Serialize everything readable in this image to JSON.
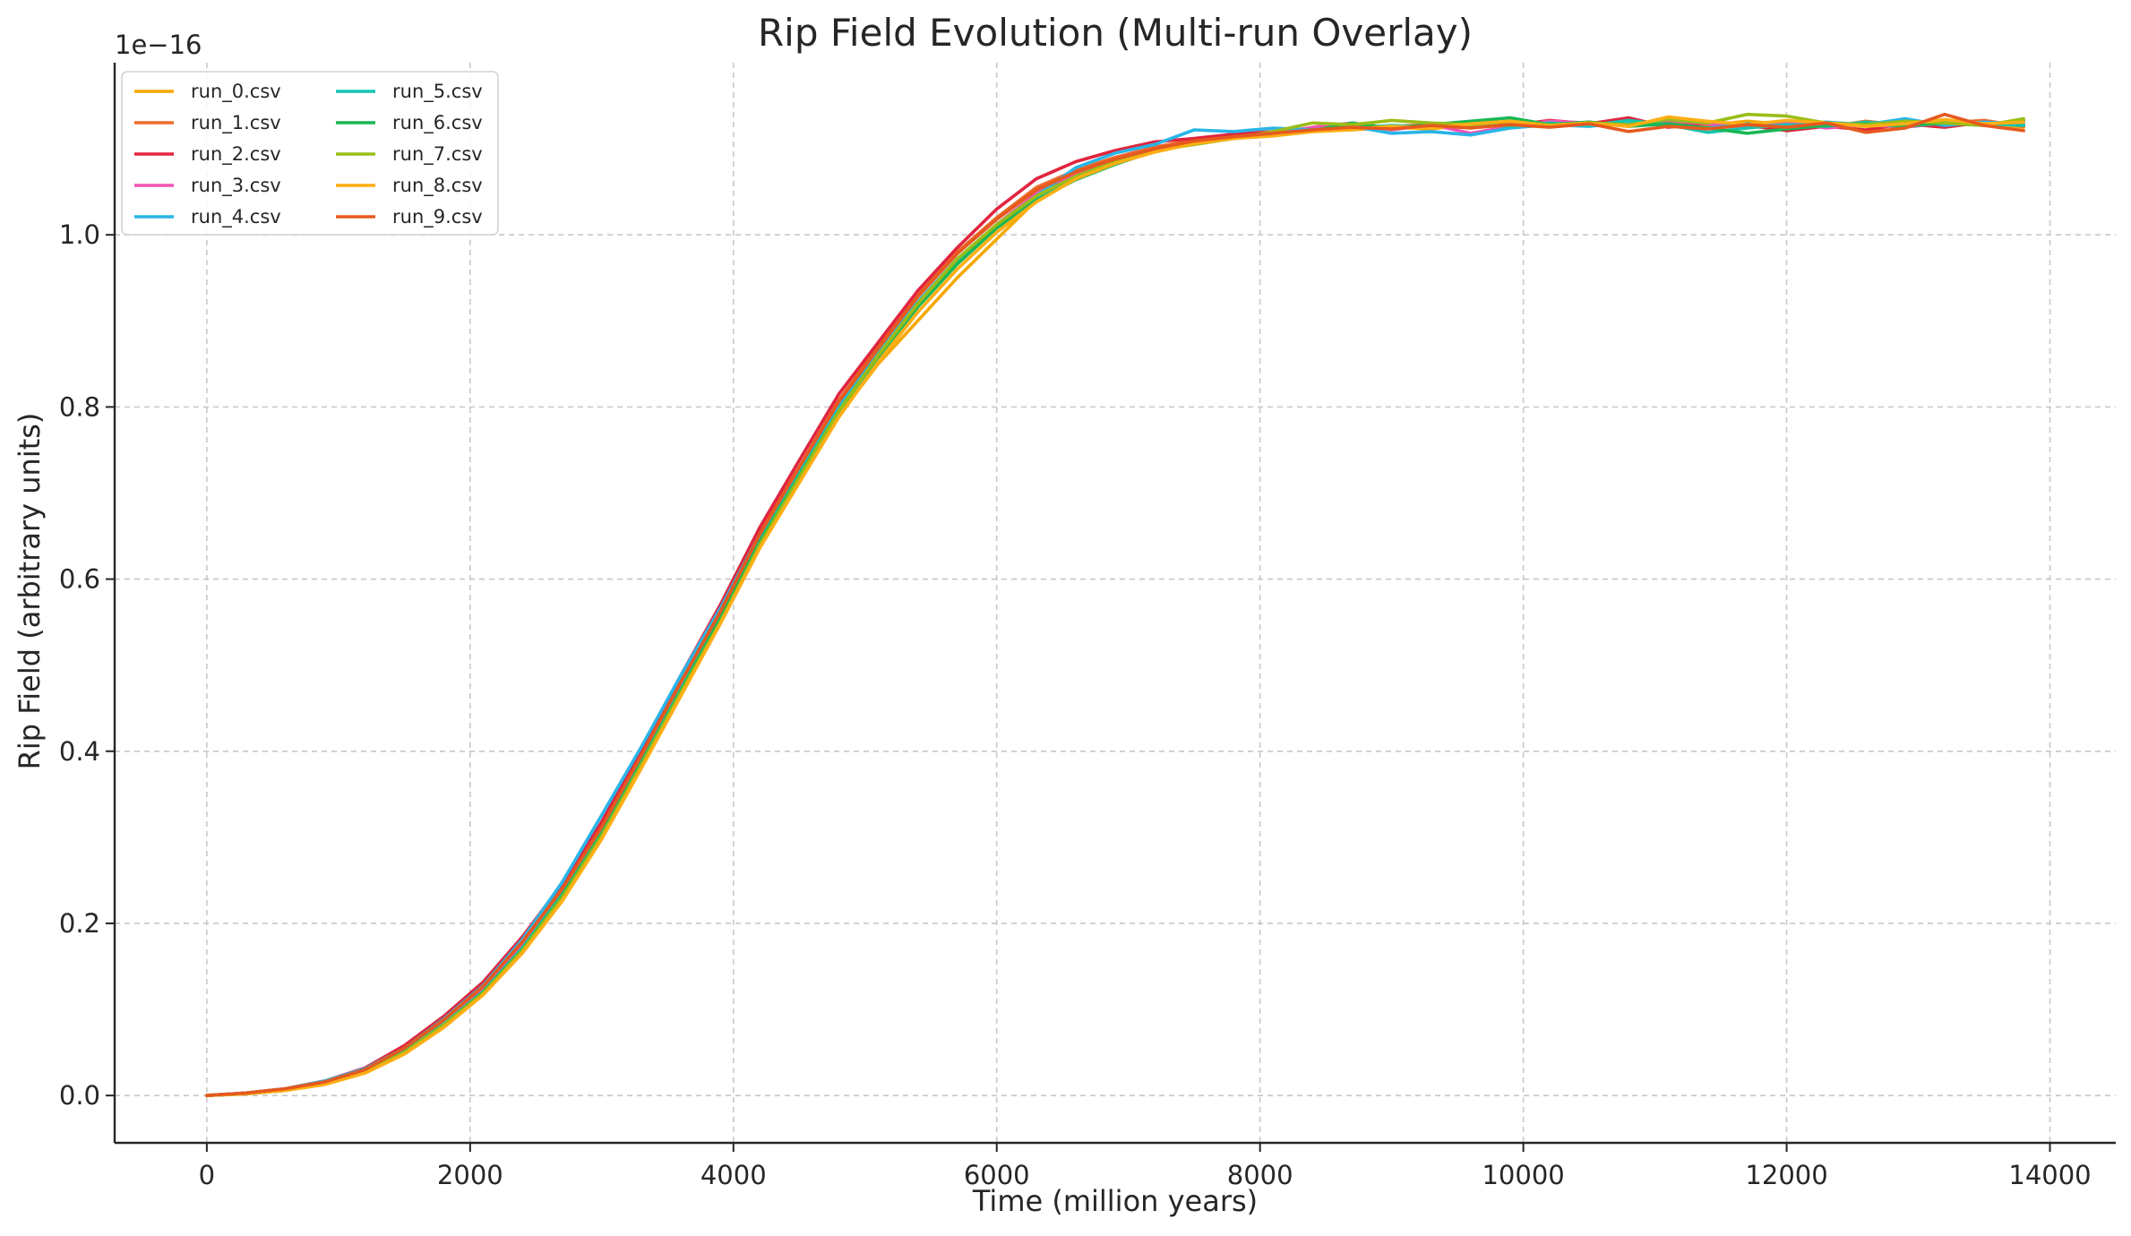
{
  "chart_data": {
    "type": "line",
    "title": "Rip Field Evolution (Multi-run Overlay)",
    "xlabel": "Time (million years)",
    "ylabel": "Rip Field (arbitrary units)",
    "offset_label": "1e−16",
    "x_ticks": [
      "0",
      "2000",
      "4000",
      "6000",
      "8000",
      "10000",
      "12000",
      "14000"
    ],
    "y_ticks": [
      "0.0",
      "0.2",
      "0.4",
      "0.6",
      "0.8",
      "1.0"
    ],
    "xlim": [
      -700,
      14500
    ],
    "ylim": [
      -0.055,
      1.2
    ],
    "grid": true,
    "legend_position": "top-left",
    "x": [
      0,
      300,
      600,
      900,
      1200,
      1500,
      1800,
      2100,
      2400,
      2700,
      3000,
      3300,
      3600,
      3900,
      4200,
      4500,
      4800,
      5100,
      5400,
      5700,
      6000,
      6300,
      6600,
      6900,
      7200,
      7500,
      7800,
      8100,
      8400,
      8700,
      9000,
      9300,
      9600,
      9900,
      10200,
      10500,
      10800,
      11100,
      11400,
      11700,
      12000,
      12300,
      12600,
      12900,
      13200,
      13500,
      13800
    ],
    "series": [
      {
        "name": "run_0.csv",
        "color": "#f5a800",
        "values": [
          0.0,
          0.002,
          0.006,
          0.013,
          0.027,
          0.049,
          0.08,
          0.118,
          0.167,
          0.228,
          0.3,
          0.385,
          0.47,
          0.555,
          0.64,
          0.715,
          0.79,
          0.85,
          0.9,
          0.95,
          0.995,
          1.04,
          1.075,
          1.09,
          1.1,
          1.11,
          1.112,
          1.115,
          1.12,
          1.122,
          1.125,
          1.123,
          1.128,
          1.126,
          1.13,
          1.127,
          1.131,
          1.129,
          1.127,
          1.132,
          1.128,
          1.13,
          1.126,
          1.131,
          1.128,
          1.13,
          1.125
        ]
      },
      {
        "name": "run_1.csv",
        "color": "#ee6a2a",
        "values": [
          0.0,
          0.003,
          0.008,
          0.017,
          0.031,
          0.056,
          0.089,
          0.128,
          0.18,
          0.242,
          0.315,
          0.398,
          0.484,
          0.565,
          0.655,
          0.73,
          0.808,
          0.87,
          0.93,
          0.98,
          1.02,
          1.055,
          1.075,
          1.09,
          1.102,
          1.11,
          1.115,
          1.118,
          1.122,
          1.124,
          1.126,
          1.128,
          1.125,
          1.13,
          1.127,
          1.131,
          1.126,
          1.133,
          1.128,
          1.124,
          1.129,
          1.125,
          1.132,
          1.127,
          1.13,
          1.133,
          1.126
        ]
      },
      {
        "name": "run_2.csv",
        "color": "#e0243f",
        "values": [
          0.0,
          0.003,
          0.008,
          0.017,
          0.032,
          0.058,
          0.092,
          0.132,
          0.185,
          0.246,
          0.318,
          0.402,
          0.488,
          0.57,
          0.66,
          0.738,
          0.815,
          0.875,
          0.935,
          0.985,
          1.03,
          1.065,
          1.085,
          1.098,
          1.108,
          1.112,
          1.117,
          1.12,
          1.123,
          1.126,
          1.124,
          1.128,
          1.131,
          1.127,
          1.133,
          1.129,
          1.136,
          1.125,
          1.13,
          1.127,
          1.121,
          1.126,
          1.122,
          1.129,
          1.125,
          1.131,
          1.128
        ]
      },
      {
        "name": "run_3.csv",
        "color": "#f052b7",
        "values": [
          0.0,
          0.002,
          0.007,
          0.015,
          0.029,
          0.052,
          0.085,
          0.123,
          0.175,
          0.236,
          0.308,
          0.392,
          0.478,
          0.56,
          0.65,
          0.725,
          0.8,
          0.862,
          0.92,
          0.97,
          1.012,
          1.048,
          1.072,
          1.088,
          1.1,
          1.108,
          1.114,
          1.118,
          1.125,
          1.13,
          1.122,
          1.128,
          1.118,
          1.126,
          1.132,
          1.13,
          1.127,
          1.133,
          1.129,
          1.126,
          1.131,
          1.124,
          1.128,
          1.125,
          1.13,
          1.127,
          1.132
        ]
      },
      {
        "name": "run_4.csv",
        "color": "#29b5e8",
        "values": [
          0.0,
          0.003,
          0.008,
          0.017,
          0.031,
          0.055,
          0.089,
          0.128,
          0.182,
          0.248,
          0.326,
          0.405,
          0.488,
          0.566,
          0.652,
          0.726,
          0.802,
          0.864,
          0.922,
          0.972,
          1.012,
          1.045,
          1.078,
          1.095,
          1.105,
          1.122,
          1.12,
          1.124,
          1.122,
          1.126,
          1.118,
          1.12,
          1.116,
          1.124,
          1.128,
          1.126,
          1.131,
          1.127,
          1.124,
          1.129,
          1.126,
          1.131,
          1.128,
          1.135,
          1.127,
          1.131,
          1.129
        ]
      },
      {
        "name": "run_5.csv",
        "color": "#17c4b0",
        "values": [
          0.0,
          0.002,
          0.007,
          0.015,
          0.028,
          0.051,
          0.083,
          0.121,
          0.172,
          0.234,
          0.306,
          0.388,
          0.472,
          0.556,
          0.645,
          0.722,
          0.797,
          0.86,
          0.918,
          0.968,
          1.01,
          1.042,
          1.065,
          1.082,
          1.098,
          1.108,
          1.113,
          1.118,
          1.121,
          1.124,
          1.127,
          1.125,
          1.129,
          1.126,
          1.13,
          1.127,
          1.133,
          1.128,
          1.119,
          1.124,
          1.128,
          1.126,
          1.131,
          1.128,
          1.132,
          1.129,
          1.127
        ]
      },
      {
        "name": "run_6.csv",
        "color": "#19b755",
        "values": [
          0.0,
          0.002,
          0.006,
          0.014,
          0.027,
          0.05,
          0.082,
          0.12,
          0.17,
          0.232,
          0.304,
          0.386,
          0.47,
          0.554,
          0.643,
          0.72,
          0.795,
          0.858,
          0.916,
          0.966,
          1.008,
          1.04,
          1.064,
          1.082,
          1.097,
          1.107,
          1.112,
          1.117,
          1.121,
          1.13,
          1.124,
          1.128,
          1.132,
          1.136,
          1.128,
          1.131,
          1.126,
          1.129,
          1.124,
          1.118,
          1.123,
          1.127,
          1.129,
          1.126,
          1.13,
          1.127,
          1.133
        ]
      },
      {
        "name": "run_7.csv",
        "color": "#9abd17",
        "values": [
          0.0,
          0.002,
          0.006,
          0.014,
          0.027,
          0.05,
          0.082,
          0.119,
          0.169,
          0.23,
          0.302,
          0.384,
          0.468,
          0.55,
          0.64,
          0.718,
          0.795,
          0.86,
          0.92,
          0.972,
          1.012,
          1.045,
          1.068,
          1.085,
          1.098,
          1.105,
          1.112,
          1.12,
          1.13,
          1.128,
          1.133,
          1.13,
          1.128,
          1.132,
          1.127,
          1.13,
          1.128,
          1.134,
          1.13,
          1.14,
          1.138,
          1.13,
          1.128,
          1.132,
          1.13,
          1.127,
          1.135
        ]
      },
      {
        "name": "run_8.csv",
        "color": "#ffae14",
        "values": [
          0.0,
          0.002,
          0.006,
          0.013,
          0.026,
          0.048,
          0.079,
          0.117,
          0.166,
          0.226,
          0.298,
          0.38,
          0.464,
          0.548,
          0.636,
          0.712,
          0.788,
          0.852,
          0.91,
          0.96,
          1.003,
          1.038,
          1.065,
          1.083,
          1.096,
          1.106,
          1.112,
          1.116,
          1.12,
          1.123,
          1.126,
          1.124,
          1.129,
          1.132,
          1.127,
          1.13,
          1.126,
          1.137,
          1.132,
          1.128,
          1.133,
          1.13,
          1.126,
          1.129,
          1.134,
          1.129,
          1.131
        ]
      },
      {
        "name": "run_9.csv",
        "color": "#e6591e",
        "values": [
          0.0,
          0.003,
          0.008,
          0.016,
          0.03,
          0.055,
          0.088,
          0.127,
          0.179,
          0.24,
          0.312,
          0.395,
          0.48,
          0.562,
          0.652,
          0.73,
          0.806,
          0.868,
          0.928,
          0.978,
          1.018,
          1.052,
          1.073,
          1.088,
          1.1,
          1.109,
          1.114,
          1.118,
          1.122,
          1.125,
          1.123,
          1.127,
          1.124,
          1.128,
          1.125,
          1.129,
          1.12,
          1.126,
          1.123,
          1.128,
          1.125,
          1.13,
          1.119,
          1.124,
          1.14,
          1.127,
          1.121
        ]
      }
    ]
  }
}
